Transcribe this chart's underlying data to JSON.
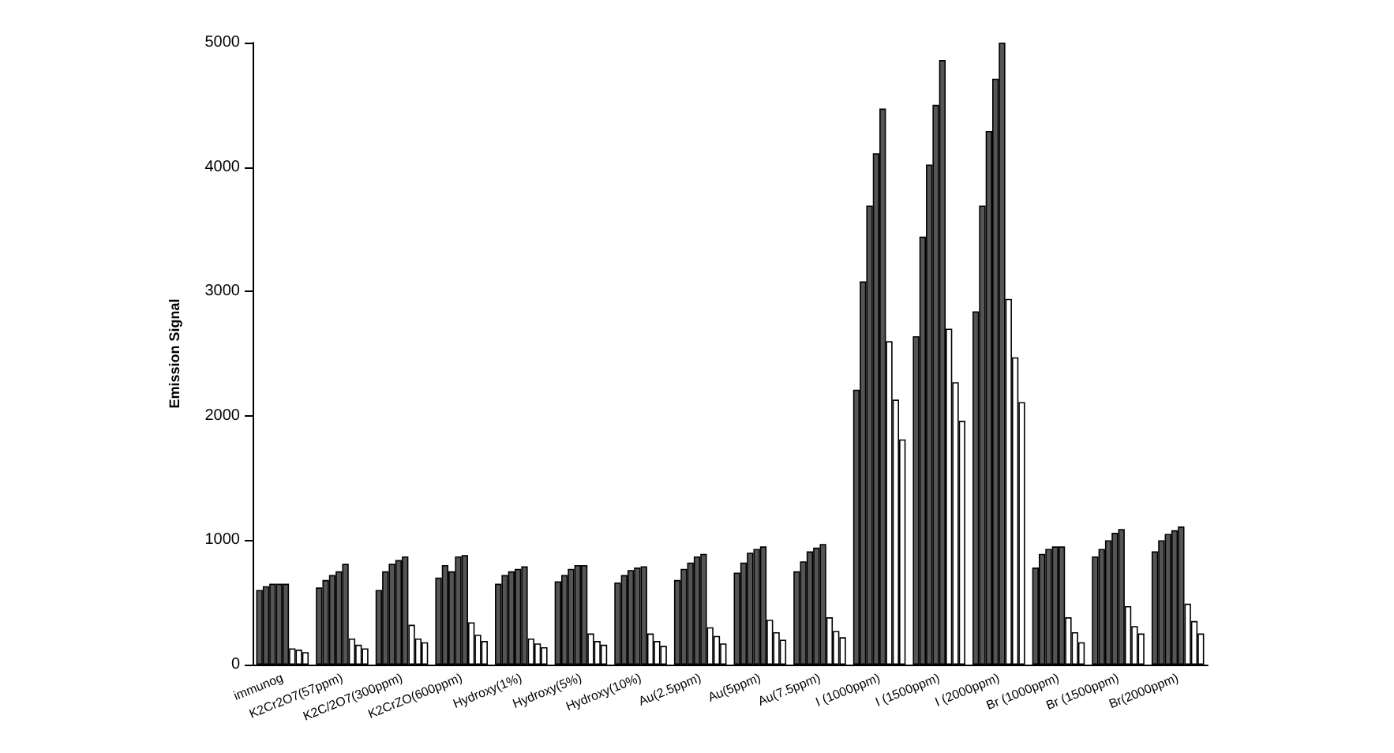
{
  "chart_data": {
    "type": "bar",
    "ylabel": "Emission Signal",
    "categories": [
      "immunog",
      "K2Cr2O7(57ppm)",
      "K2C/2O7(300ppm)",
      "K2CrZO(600ppm)",
      "Hydroxy(1%)",
      "Hydroxy(5%)",
      "Hydroxy(10%)",
      "Au(2.5ppm)",
      "Au(5ppm)",
      "Au(7.5ppm)",
      "I (1000ppm)",
      "I (1500ppm)",
      "I (2000ppm)",
      "Br (1000ppm)",
      "Br (1500ppm)",
      "Br(2000ppm)"
    ],
    "series": [
      {
        "color": "#555555",
        "values": [
          600,
          620,
          600,
          700,
          650,
          670,
          660,
          680,
          740,
          750,
          2210,
          2640,
          2840,
          780,
          870,
          910
        ]
      },
      {
        "color": "#555555",
        "values": [
          630,
          680,
          750,
          800,
          720,
          720,
          720,
          770,
          820,
          830,
          3080,
          3440,
          3690,
          890,
          930,
          1000
        ]
      },
      {
        "color": "#555555",
        "values": [
          650,
          720,
          810,
          750,
          750,
          770,
          760,
          820,
          900,
          910,
          3690,
          4020,
          4290,
          930,
          1000,
          1050
        ]
      },
      {
        "color": "#555555",
        "values": [
          650,
          750,
          840,
          870,
          770,
          800,
          780,
          870,
          930,
          940,
          4110,
          4500,
          4710,
          950,
          1060,
          1080
        ]
      },
      {
        "color": "#555555",
        "values": [
          650,
          810,
          870,
          880,
          790,
          800,
          790,
          890,
          950,
          970,
          4470,
          4860,
          5000,
          950,
          1090,
          1110
        ]
      },
      {
        "color": "#ffffff",
        "values": [
          130,
          210,
          320,
          340,
          210,
          250,
          250,
          300,
          360,
          380,
          2600,
          2700,
          2940,
          380,
          470,
          490
        ]
      },
      {
        "color": "#ffffff",
        "values": [
          120,
          160,
          210,
          240,
          170,
          190,
          190,
          230,
          260,
          270,
          2130,
          2270,
          2470,
          260,
          310,
          350
        ]
      },
      {
        "color": "#ffffff",
        "values": [
          100,
          130,
          180,
          190,
          140,
          160,
          150,
          170,
          200,
          220,
          1810,
          1960,
          2110,
          180,
          250,
          250
        ]
      }
    ],
    "ylim": [
      0,
      5000
    ],
    "yticks": [
      0,
      1000,
      2000,
      3000,
      4000,
      5000
    ],
    "grid": false
  }
}
